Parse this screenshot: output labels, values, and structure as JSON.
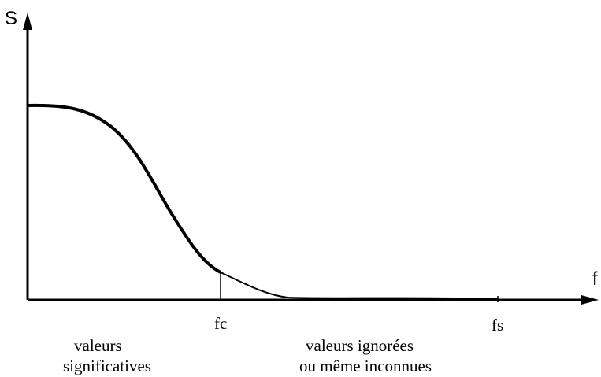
{
  "axes": {
    "y_label": "S",
    "x_label": "f"
  },
  "markers": [
    "fc",
    "fs"
  ],
  "regions": [
    {
      "lines": [
        "valeurs",
        "significatives"
      ]
    },
    {
      "lines": [
        "valeurs ignorées",
        "ou même inconnues"
      ]
    }
  ]
}
